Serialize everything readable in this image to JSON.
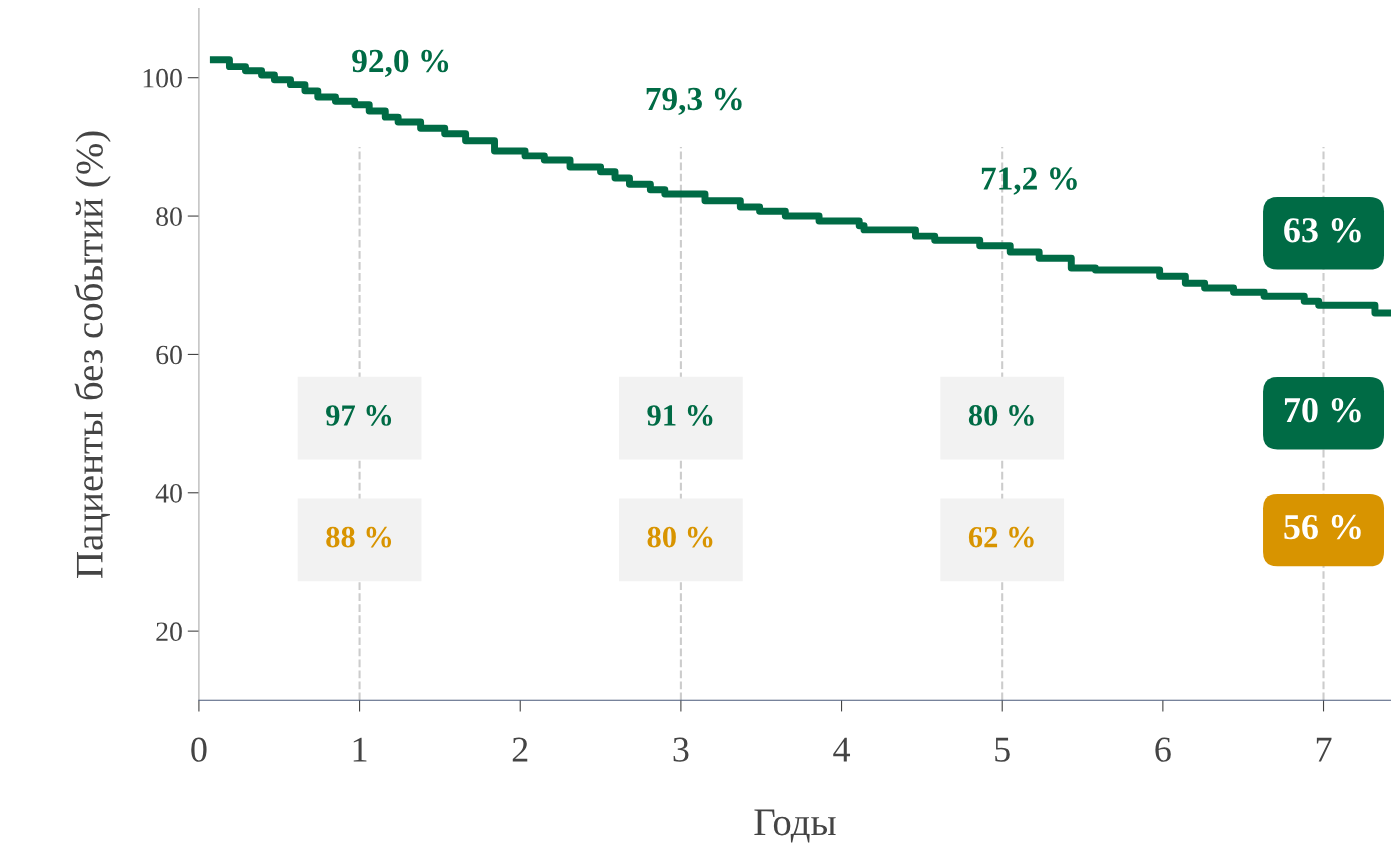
{
  "chart_data": {
    "type": "step",
    "xlabel": "Годы",
    "ylabel": "Пациенты без событий (%)",
    "xlim": [
      0,
      7.42
    ],
    "ylim": [
      10,
      110
    ],
    "xticks": [
      0,
      1,
      2,
      3,
      4,
      5,
      6,
      7
    ],
    "yticks": [
      20,
      40,
      60,
      80,
      100
    ],
    "grid": false,
    "legend": false,
    "series": [
      {
        "color": "#006b45",
        "x": [
          0.09,
          0.19,
          0.29,
          0.39,
          0.47,
          0.57,
          0.66,
          0.74,
          0.85,
          0.97,
          1.06,
          1.16,
          1.24,
          1.38,
          1.53,
          1.66,
          1.84,
          2.03,
          2.15,
          2.31,
          2.5,
          2.59,
          2.68,
          2.81,
          2.9,
          3.15,
          3.37,
          3.49,
          3.65,
          3.86,
          4.11,
          4.14,
          4.46,
          4.58,
          4.86,
          5.05,
          5.23,
          5.43,
          5.58,
          5.98,
          6.14,
          6.26,
          6.44,
          6.63,
          6.88,
          6.97,
          7.32,
          7.42
        ],
        "values": [
          102.6,
          101.6,
          101.0,
          100.4,
          99.7,
          99.0,
          98.1,
          97.2,
          96.6,
          96.1,
          95.2,
          94.3,
          93.6,
          92.7,
          91.9,
          90.9,
          89.4,
          88.7,
          88.1,
          87.1,
          86.4,
          85.5,
          84.6,
          83.8,
          83.2,
          82.2,
          81.3,
          80.7,
          80.0,
          79.3,
          78.6,
          78.0,
          77.1,
          76.5,
          75.7,
          74.8,
          73.9,
          72.5,
          72.2,
          71.3,
          70.3,
          69.6,
          69.0,
          68.4,
          67.7,
          67.1,
          66.0,
          66.0
        ]
      }
    ],
    "ref_lines": [
      {
        "axis": "x",
        "value": 1,
        "color": "#cccccc",
        "line_style": "dashed"
      },
      {
        "axis": "x",
        "value": 3,
        "color": "#cccccc",
        "line_style": "dashed"
      },
      {
        "axis": "x",
        "value": 5,
        "color": "#cccccc",
        "line_style": "dashed"
      },
      {
        "axis": "x",
        "value": 7,
        "color": "#cccccc",
        "line_style": "dashed"
      }
    ],
    "annotations": [
      "92,0 %",
      "79,3 %",
      "71,2 %",
      "97 %",
      "91 %",
      "80 %",
      "88 %",
      "80 %",
      "62 %",
      "63 %",
      "70 %",
      "56 %"
    ]
  }
}
